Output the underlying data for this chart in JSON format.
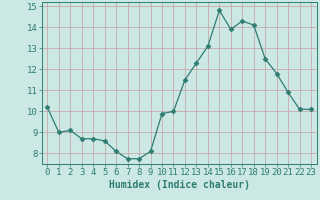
{
  "x": [
    0,
    1,
    2,
    3,
    4,
    5,
    6,
    7,
    8,
    9,
    10,
    11,
    12,
    13,
    14,
    15,
    16,
    17,
    18,
    19,
    20,
    21,
    22,
    23
  ],
  "y": [
    10.2,
    9.0,
    9.1,
    8.7,
    8.7,
    8.6,
    8.1,
    7.75,
    7.75,
    8.1,
    9.9,
    10.0,
    11.5,
    12.3,
    13.1,
    14.8,
    13.9,
    14.3,
    14.1,
    12.5,
    11.8,
    10.9,
    10.1,
    10.1
  ],
  "line_color": "#2e7d72",
  "marker": "D",
  "marker_size": 2.5,
  "bg_color": "#cce8e5",
  "grid_color_h": "#c4a0a0",
  "grid_color_v": "#c4a0a0",
  "xlabel": "Humidex (Indice chaleur)",
  "xlim": [
    -0.5,
    23.5
  ],
  "ylim": [
    7.5,
    15.2
  ],
  "yticks": [
    8,
    9,
    10,
    11,
    12,
    13,
    14,
    15
  ],
  "xticks": [
    0,
    1,
    2,
    3,
    4,
    5,
    6,
    7,
    8,
    9,
    10,
    11,
    12,
    13,
    14,
    15,
    16,
    17,
    18,
    19,
    20,
    21,
    22,
    23
  ],
  "xlabel_fontsize": 7,
  "tick_fontsize": 6.5
}
